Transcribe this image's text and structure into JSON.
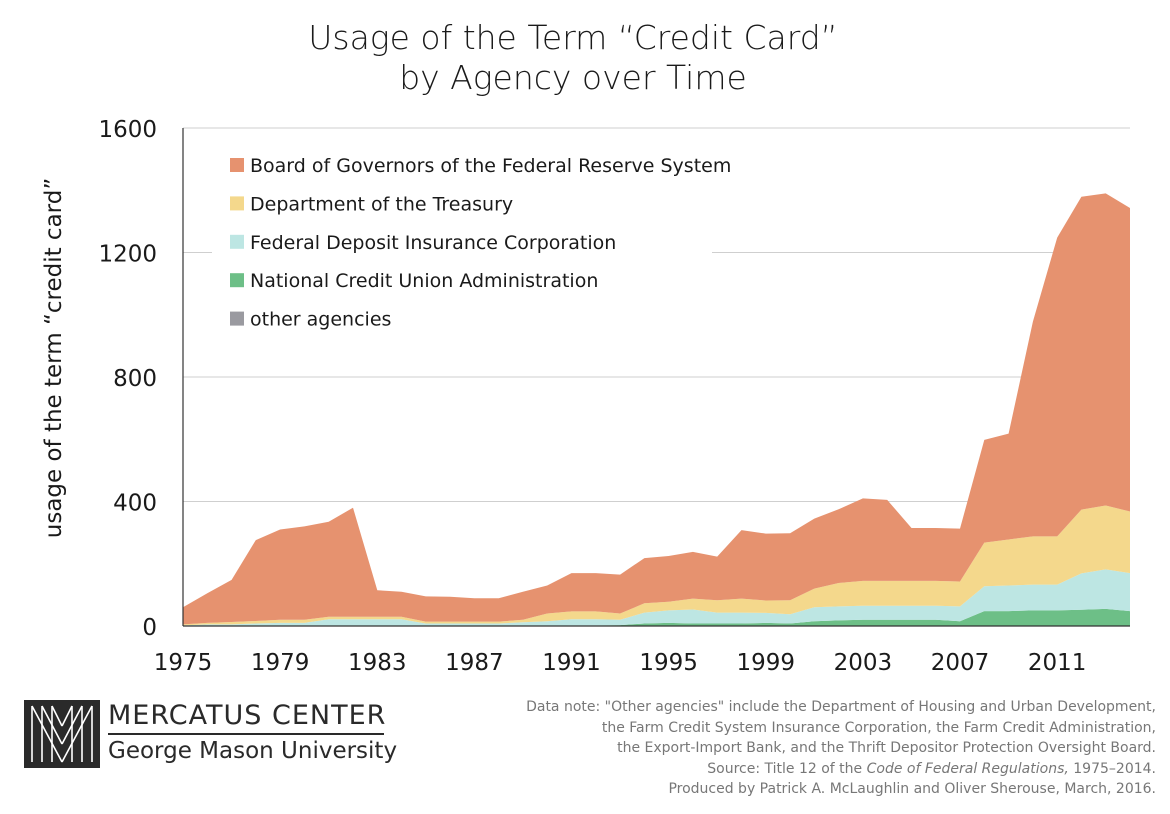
{
  "title_line1": "Usage of the Term “Credit Card”",
  "title_line2": "by Agency over Time",
  "logo": {
    "name": "MERCATUS CENTER",
    "subname": "George Mason University"
  },
  "note": {
    "line1": "Data note: \"Other agencies\" include the Department of Housing and Urban Development,",
    "line2": "the Farm Credit System Insurance Corporation, the Farm Credit Administration,",
    "line3": "the Export-Import Bank, and the Thrift Depositor Protection Oversight Board.",
    "source_prefix": "Source: Title 12 of the ",
    "source_italic": "Code of Federal Regulations,",
    "source_suffix": " 1975–2014.",
    "line5": "Produced by Patrick A. McLaughlin and Oliver Sherouse, March, 2016."
  },
  "chart_data": {
    "type": "area",
    "title": "Usage of the Term “Credit Card” by Agency over Time",
    "xlabel": "",
    "ylabel": "usage of the term “credit card”",
    "xlim": [
      1975,
      2014
    ],
    "ylim": [
      0,
      1600
    ],
    "yticks": [
      0,
      400,
      800,
      1200,
      1600
    ],
    "xticks": [
      1975,
      1979,
      1983,
      1987,
      1991,
      1995,
      1999,
      2003,
      2007,
      2011
    ],
    "grid": "horizontal",
    "legend_position": "top-left",
    "stacked": true,
    "x": [
      1975,
      1976,
      1977,
      1978,
      1979,
      1980,
      1981,
      1982,
      1983,
      1984,
      1985,
      1986,
      1987,
      1988,
      1989,
      1990,
      1991,
      1992,
      1993,
      1994,
      1995,
      1996,
      1997,
      1998,
      1999,
      2000,
      2001,
      2002,
      2003,
      2004,
      2005,
      2006,
      2007,
      2008,
      2009,
      2010,
      2011,
      2012,
      2013,
      2014
    ],
    "series": [
      {
        "name": "other agencies",
        "color": "#9a9aa0",
        "values": [
          0,
          0,
          0,
          0,
          0,
          0,
          0,
          0,
          0,
          0,
          0,
          0,
          0,
          0,
          0,
          0,
          0,
          0,
          0,
          0,
          0,
          0,
          0,
          0,
          0,
          0,
          0,
          0,
          0,
          0,
          0,
          0,
          0,
          0,
          0,
          0,
          0,
          0,
          0,
          0
        ]
      },
      {
        "name": "National Credit Union Administration",
        "color": "#6dbf87",
        "values": [
          0,
          0,
          0,
          0,
          0,
          0,
          0,
          0,
          0,
          0,
          0,
          0,
          0,
          0,
          0,
          0,
          2,
          2,
          3,
          8,
          10,
          8,
          8,
          8,
          10,
          8,
          15,
          18,
          20,
          20,
          20,
          20,
          15,
          48,
          48,
          50,
          50,
          52,
          55,
          48
        ]
      },
      {
        "name": "Federal Deposit Insurance Corporation",
        "color": "#bde6e3",
        "values": [
          2,
          5,
          5,
          8,
          10,
          10,
          22,
          22,
          22,
          22,
          8,
          8,
          8,
          8,
          12,
          15,
          20,
          20,
          17,
          35,
          40,
          45,
          35,
          35,
          32,
          30,
          45,
          45,
          45,
          45,
          45,
          45,
          48,
          80,
          82,
          83,
          83,
          117,
          127,
          122
        ]
      },
      {
        "name": "Department of the Treasury",
        "color": "#f4d88c",
        "values": [
          3,
          5,
          8,
          8,
          10,
          10,
          8,
          8,
          8,
          8,
          6,
          6,
          6,
          6,
          8,
          25,
          25,
          25,
          20,
          30,
          28,
          35,
          40,
          45,
          40,
          45,
          60,
          75,
          80,
          80,
          80,
          80,
          80,
          140,
          148,
          155,
          155,
          205,
          205,
          198
        ]
      },
      {
        "name": "Board of Governors of the Federal Reserve System",
        "color": "#e6926f",
        "values": [
          55,
          95,
          135,
          260,
          290,
          300,
          305,
          350,
          85,
          80,
          81,
          80,
          75,
          75,
          90,
          90,
          123,
          123,
          125,
          145,
          147,
          150,
          140,
          220,
          215,
          215,
          225,
          237,
          265,
          260,
          170,
          170,
          170,
          330,
          340,
          690,
          960,
          1005,
          1003,
          975
        ]
      }
    ]
  }
}
